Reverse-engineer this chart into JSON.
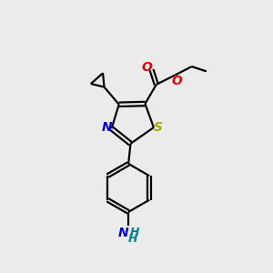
{
  "background_color": "#ebebeb",
  "atom_colors": {
    "C": "#000000",
    "N": "#0000dd",
    "O": "#ee0000",
    "S": "#aaaa00",
    "NH2": "#008888"
  },
  "figsize": [
    3.0,
    3.0
  ],
  "dpi": 100,
  "lw": 1.6
}
